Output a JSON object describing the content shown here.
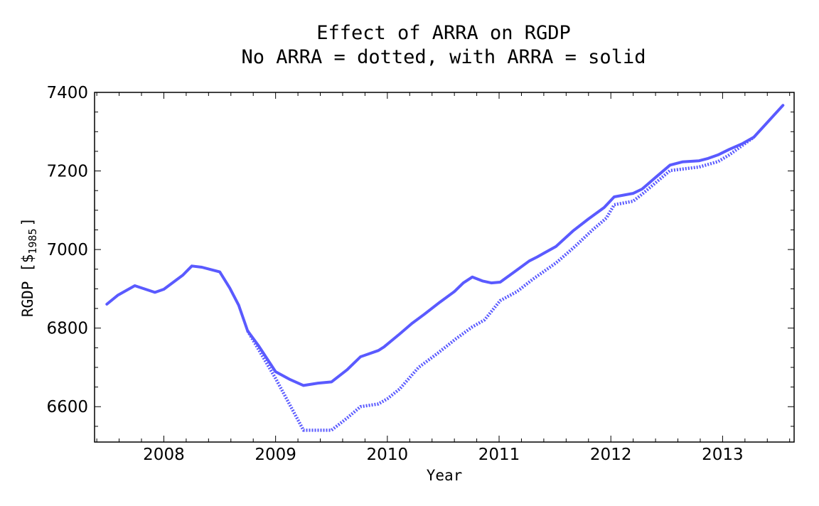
{
  "chart_data": {
    "type": "line",
    "title": "Effect of ARRA on RGDP",
    "subtitle": "No ARRA = dotted, with ARRA = solid",
    "xlabel": "Year",
    "ylabel": "RGDP [$",
    "ylabel_subscript": "1985",
    "ylabel_close": "]",
    "xlim": [
      2007.38,
      2013.64
    ],
    "ylim": [
      6510,
      7400
    ],
    "x_ticks": [
      "2008",
      "2009",
      "2010",
      "2011",
      "2012",
      "2013"
    ],
    "y_ticks": [
      "6600",
      "6800",
      "7000",
      "7200",
      "7400"
    ],
    "grid": false,
    "line_color": "#5a5aff",
    "series": [
      {
        "style": "solid",
        "x": [
          2007.49,
          2007.59,
          2007.74,
          2007.92,
          2008.0,
          2008.17,
          2008.25,
          2008.34,
          2008.5,
          2008.59,
          2008.67,
          2008.75,
          2008.85,
          2009.0,
          2009.13,
          2009.25,
          2009.38,
          2009.5,
          2009.64,
          2009.76,
          2009.92,
          2009.97,
          2010.11,
          2010.22,
          2010.33,
          2010.47,
          2010.6,
          2010.68,
          2010.76,
          2010.85,
          2010.93,
          2011.01,
          2011.16,
          2011.27,
          2011.34,
          2011.51,
          2011.66,
          2011.8,
          2011.94,
          2012.03,
          2012.2,
          2012.28,
          2012.41,
          2012.53,
          2012.64,
          2012.79,
          2012.87,
          2012.96,
          2013.06,
          2013.18,
          2013.28,
          2013.54
        ],
        "y": [
          6861,
          6884,
          6908,
          6891,
          6899,
          6935,
          6958,
          6955,
          6943,
          6902,
          6858,
          6793,
          6754,
          6689,
          6669,
          6654,
          6660,
          6663,
          6694,
          6727,
          6743,
          6752,
          6785,
          6812,
          6835,
          6866,
          6893,
          6915,
          6930,
          6920,
          6915,
          6917,
          6948,
          6971,
          6981,
          7008,
          7047,
          7078,
          7107,
          7134,
          7143,
          7154,
          7186,
          7215,
          7223,
          7226,
          7232,
          7241,
          7255,
          7270,
          7286,
          7367
        ]
      },
      {
        "style": "dotted",
        "x": [
          2008.75,
          2008.89,
          2009.0,
          2009.25,
          2009.5,
          2009.64,
          2009.76,
          2009.92,
          2010.0,
          2010.11,
          2010.28,
          2010.45,
          2010.61,
          2010.76,
          2010.87,
          2011.01,
          2011.16,
          2011.3,
          2011.51,
          2011.68,
          2011.84,
          2011.96,
          2012.03,
          2012.2,
          2012.28,
          2012.53,
          2012.79,
          2012.96,
          2013.06,
          2013.28
        ],
        "y": [
          6793,
          6725,
          6672,
          6540,
          6540,
          6571,
          6600,
          6607,
          6620,
          6645,
          6700,
          6736,
          6772,
          6803,
          6821,
          6870,
          6893,
          6924,
          6966,
          7008,
          7051,
          7080,
          7114,
          7123,
          7141,
          7201,
          7210,
          7224,
          7241,
          7286
        ]
      }
    ]
  }
}
